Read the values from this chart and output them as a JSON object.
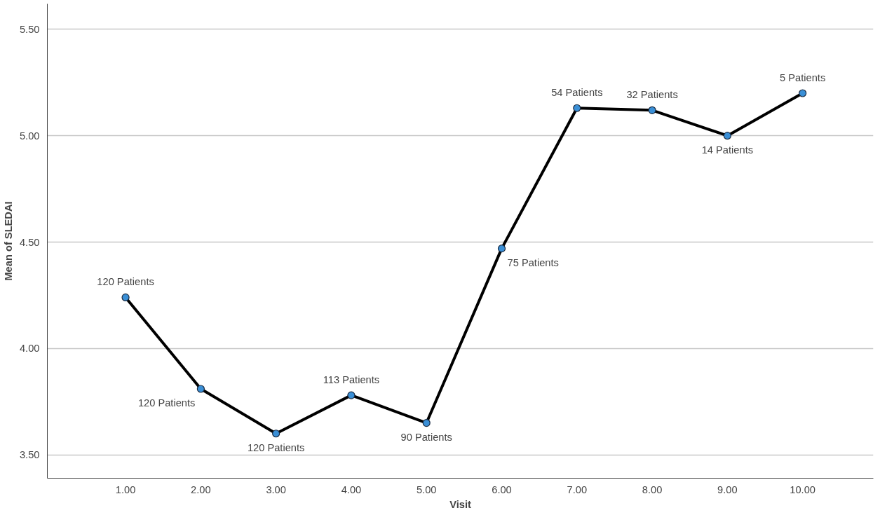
{
  "chart_data": {
    "type": "line",
    "xlabel": "Visit",
    "ylabel": "Mean of SLEDAI",
    "x": [
      1,
      2,
      3,
      4,
      5,
      6,
      7,
      8,
      9,
      10
    ],
    "series": [
      {
        "color": "#000000",
        "values": [
          4.24,
          3.81,
          3.6,
          3.78,
          3.65,
          4.47,
          5.13,
          5.12,
          5.0,
          5.2
        ]
      }
    ],
    "marker": "circle",
    "line_style": "solid",
    "grid": "y",
    "xlim": [
      -0.04,
      10.94
    ],
    "ylim": [
      3.39,
      5.62
    ],
    "xticks": [
      {
        "value": 1,
        "label": "1.00"
      },
      {
        "value": 2,
        "label": "2.00"
      },
      {
        "value": 3,
        "label": "3.00"
      },
      {
        "value": 4,
        "label": "4.00"
      },
      {
        "value": 5,
        "label": "5.00"
      },
      {
        "value": 6,
        "label": "6.00"
      },
      {
        "value": 7,
        "label": "7.00"
      },
      {
        "value": 8,
        "label": "8.00"
      },
      {
        "value": 9,
        "label": "9.00"
      },
      {
        "value": 10,
        "label": "10.00"
      }
    ],
    "yticks": [
      {
        "value": 3.5,
        "label": "3.50"
      },
      {
        "value": 4,
        "label": "4.00"
      },
      {
        "value": 4.5,
        "label": "4.50"
      },
      {
        "value": 5,
        "label": "5.00"
      },
      {
        "value": 5.5,
        "label": "5.50"
      }
    ],
    "annotations": [
      {
        "text": "120 Patients",
        "x": 1,
        "y": 4.24
      },
      {
        "text": "120 Patients",
        "x": 2,
        "y": 3.81
      },
      {
        "text": "120 Patients",
        "x": 3,
        "y": 3.6
      },
      {
        "text": "113 Patients",
        "x": 4,
        "y": 3.78
      },
      {
        "text": "90 Patients",
        "x": 5,
        "y": 3.65
      },
      {
        "text": "75 Patients",
        "x": 6,
        "y": 4.47
      },
      {
        "text": "54 Patients",
        "x": 7,
        "y": 5.13
      },
      {
        "text": "32 Patients",
        "x": 8,
        "y": 5.12
      },
      {
        "text": "14 Patients",
        "x": 9,
        "y": 5.0
      },
      {
        "text": "5 Patients",
        "x": 10,
        "y": 5.2
      }
    ]
  }
}
